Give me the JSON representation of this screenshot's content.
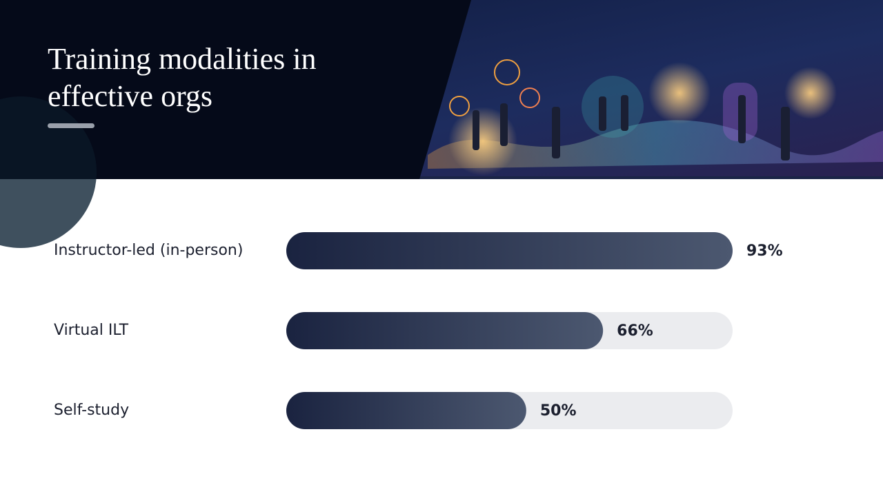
{
  "chart_data": {
    "type": "bar",
    "orientation": "horizontal",
    "title": "Training modalities in effective orgs",
    "categories": [
      "Instructor-led (in-person)",
      "Virtual ILT",
      "Self-study"
    ],
    "values": [
      93,
      66,
      50
    ],
    "value_labels": [
      "93%",
      "66%",
      "50%"
    ],
    "color": "#1c2540",
    "xlim": [
      0,
      93
    ]
  }
}
